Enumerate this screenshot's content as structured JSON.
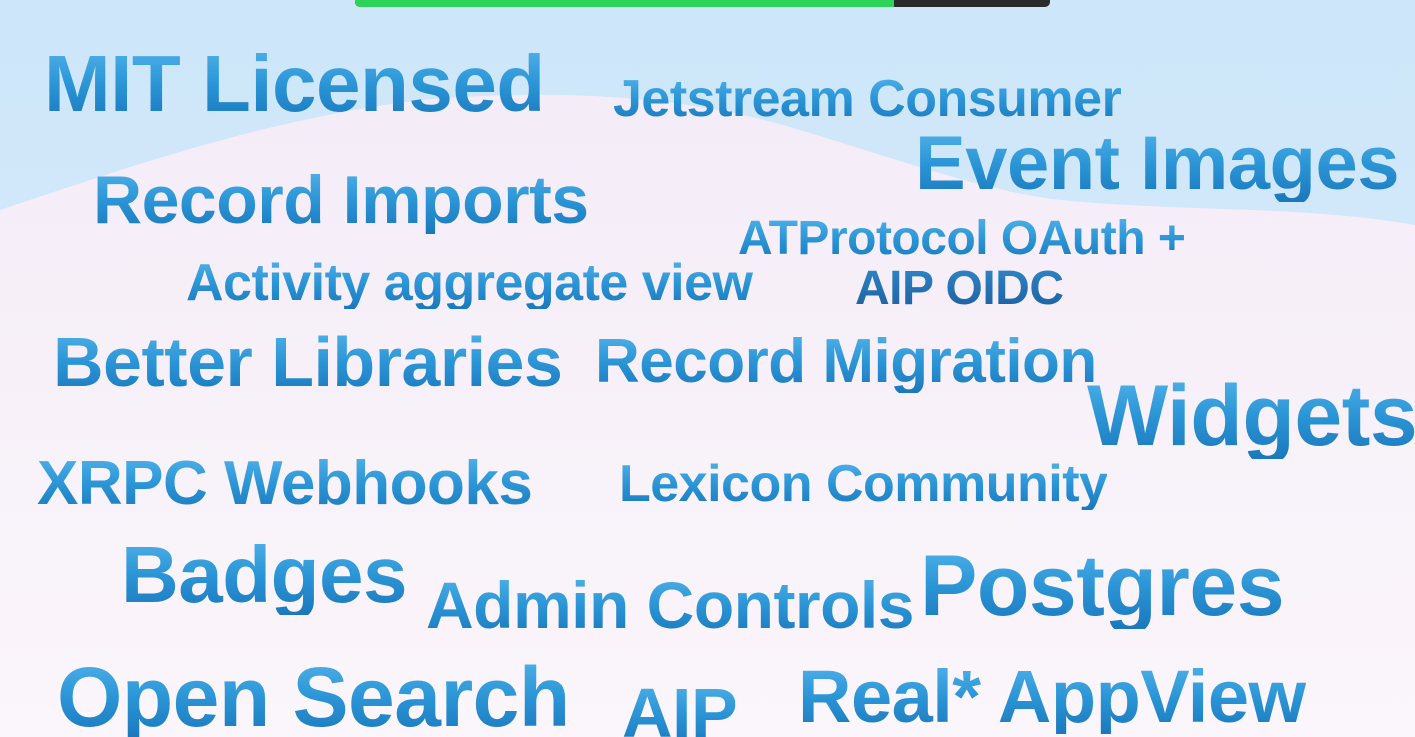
{
  "progress": {
    "fraction": 0.775
  },
  "words": [
    {
      "text": "MIT Licensed"
    },
    {
      "text": "Jetstream Consumer"
    },
    {
      "text": "Event Images"
    },
    {
      "text": "Record Imports"
    },
    {
      "text": "ATProtocol OAuth +"
    },
    {
      "text": "AIP OIDC"
    },
    {
      "text": "Activity aggregate view"
    },
    {
      "text": "Better Libraries"
    },
    {
      "text": "Record Migration"
    },
    {
      "text": "Widgets"
    },
    {
      "text": "XRPC Webhooks"
    },
    {
      "text": "Lexicon Community"
    },
    {
      "text": "Badges"
    },
    {
      "text": "Admin Controls"
    },
    {
      "text": "Postgres"
    },
    {
      "text": "Open Search"
    },
    {
      "text": "AIP"
    },
    {
      "text": "Real* AppView"
    }
  ],
  "colors": {
    "sky": "#cfe6f8",
    "hill": "#f6eef8",
    "text_light": "#52b3ea",
    "text_dark": "#1a78bd",
    "progress_fill": "#2fd35a",
    "progress_track": "#2b2b2b"
  }
}
